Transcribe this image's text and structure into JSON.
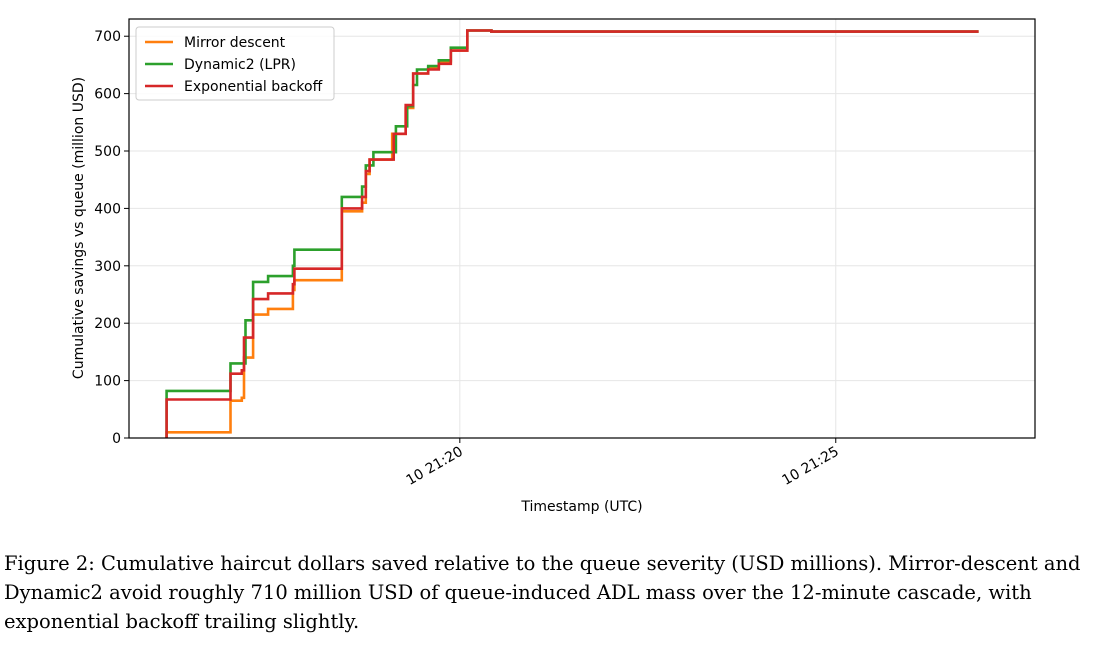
{
  "chart_data": {
    "type": "line",
    "step": true,
    "xlabel": "Timestamp (UTC)",
    "ylabel": "Cumulative savings vs queue (million USD)",
    "x_unit": "minutes after 10 21:20 UTC",
    "xlim": [
      -4.4,
      7.65
    ],
    "ylim": [
      0,
      730
    ],
    "x_ticks": [
      {
        "value": 0,
        "label": "10 21:20"
      },
      {
        "value": 5,
        "label": "10 21:25"
      }
    ],
    "y_ticks": [
      0,
      100,
      200,
      300,
      400,
      500,
      600,
      700
    ],
    "grid": true,
    "legend_position": "top-left",
    "series": [
      {
        "name": "Mirror descent",
        "color": "#ff7f0e",
        "points": [
          [
            -3.9,
            0
          ],
          [
            -3.9,
            10
          ],
          [
            -3.05,
            10
          ],
          [
            -3.05,
            65
          ],
          [
            -2.9,
            65
          ],
          [
            -2.9,
            70
          ],
          [
            -2.87,
            70
          ],
          [
            -2.87,
            140
          ],
          [
            -2.75,
            140
          ],
          [
            -2.75,
            215
          ],
          [
            -2.55,
            215
          ],
          [
            -2.55,
            225
          ],
          [
            -2.22,
            225
          ],
          [
            -2.22,
            258
          ],
          [
            -2.2,
            258
          ],
          [
            -2.2,
            275
          ],
          [
            -1.57,
            275
          ],
          [
            -1.57,
            395
          ],
          [
            -1.3,
            395
          ],
          [
            -1.3,
            410
          ],
          [
            -1.25,
            410
          ],
          [
            -1.25,
            460
          ],
          [
            -1.2,
            460
          ],
          [
            -1.2,
            485
          ],
          [
            -0.9,
            485
          ],
          [
            -0.9,
            530
          ],
          [
            -0.72,
            530
          ],
          [
            -0.72,
            575
          ],
          [
            -0.62,
            575
          ],
          [
            -0.62,
            635
          ],
          [
            -0.42,
            635
          ],
          [
            -0.42,
            645
          ],
          [
            -0.28,
            645
          ],
          [
            -0.28,
            655
          ],
          [
            -0.12,
            655
          ],
          [
            -0.12,
            675
          ],
          [
            0.1,
            675
          ],
          [
            0.1,
            710
          ],
          [
            0.42,
            710
          ],
          [
            0.42,
            708
          ],
          [
            6.9,
            708
          ]
        ]
      },
      {
        "name": "Dynamic2 (LPR)",
        "color": "#2ca02c",
        "points": [
          [
            -3.9,
            0
          ],
          [
            -3.9,
            82
          ],
          [
            -3.05,
            82
          ],
          [
            -3.05,
            130
          ],
          [
            -2.85,
            130
          ],
          [
            -2.85,
            205
          ],
          [
            -2.75,
            205
          ],
          [
            -2.75,
            272
          ],
          [
            -2.55,
            272
          ],
          [
            -2.55,
            282
          ],
          [
            -2.22,
            282
          ],
          [
            -2.22,
            300
          ],
          [
            -2.2,
            300
          ],
          [
            -2.2,
            328
          ],
          [
            -1.57,
            328
          ],
          [
            -1.57,
            420
          ],
          [
            -1.3,
            420
          ],
          [
            -1.3,
            438
          ],
          [
            -1.25,
            438
          ],
          [
            -1.25,
            475
          ],
          [
            -1.15,
            475
          ],
          [
            -1.15,
            498
          ],
          [
            -0.85,
            498
          ],
          [
            -0.85,
            543
          ],
          [
            -0.7,
            543
          ],
          [
            -0.7,
            578
          ],
          [
            -0.62,
            578
          ],
          [
            -0.62,
            615
          ],
          [
            -0.57,
            615
          ],
          [
            -0.57,
            642
          ],
          [
            -0.42,
            642
          ],
          [
            -0.42,
            648
          ],
          [
            -0.28,
            648
          ],
          [
            -0.28,
            658
          ],
          [
            -0.12,
            658
          ],
          [
            -0.12,
            680
          ],
          [
            0.1,
            680
          ],
          [
            0.1,
            710
          ],
          [
            0.42,
            710
          ],
          [
            0.42,
            708
          ],
          [
            6.9,
            708
          ]
        ]
      },
      {
        "name": "Exponential backoff",
        "color": "#d62728",
        "points": [
          [
            -3.9,
            0
          ],
          [
            -3.9,
            67
          ],
          [
            -3.05,
            67
          ],
          [
            -3.05,
            112
          ],
          [
            -2.9,
            112
          ],
          [
            -2.9,
            118
          ],
          [
            -2.87,
            118
          ],
          [
            -2.87,
            175
          ],
          [
            -2.75,
            175
          ],
          [
            -2.75,
            242
          ],
          [
            -2.55,
            242
          ],
          [
            -2.55,
            252
          ],
          [
            -2.22,
            252
          ],
          [
            -2.22,
            268
          ],
          [
            -2.2,
            268
          ],
          [
            -2.2,
            295
          ],
          [
            -1.57,
            295
          ],
          [
            -1.57,
            400
          ],
          [
            -1.3,
            400
          ],
          [
            -1.3,
            420
          ],
          [
            -1.25,
            420
          ],
          [
            -1.25,
            465
          ],
          [
            -1.2,
            465
          ],
          [
            -1.2,
            485
          ],
          [
            -0.88,
            485
          ],
          [
            -0.88,
            530
          ],
          [
            -0.72,
            530
          ],
          [
            -0.72,
            580
          ],
          [
            -0.62,
            580
          ],
          [
            -0.62,
            635
          ],
          [
            -0.42,
            635
          ],
          [
            -0.42,
            642
          ],
          [
            -0.28,
            642
          ],
          [
            -0.28,
            652
          ],
          [
            -0.12,
            652
          ],
          [
            -0.12,
            675
          ],
          [
            0.1,
            675
          ],
          [
            0.1,
            710
          ],
          [
            0.42,
            710
          ],
          [
            0.42,
            708
          ],
          [
            6.9,
            708
          ]
        ]
      }
    ]
  },
  "caption": "Figure 2: Cumulative haircut dollars saved relative to the queue severity (USD millions). Mirror-descent and Dynamic2 avoid roughly 710 million USD of queue-induced ADL mass over the 12-minute cascade, with exponential backoff trailing slightly."
}
